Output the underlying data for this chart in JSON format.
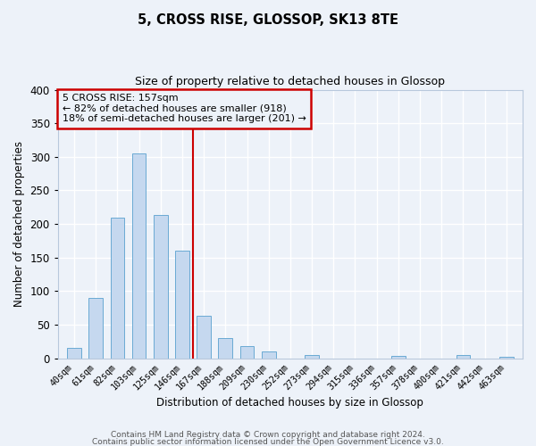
{
  "title": "5, CROSS RISE, GLOSSOP, SK13 8TE",
  "subtitle": "Size of property relative to detached houses in Glossop",
  "xlabel": "Distribution of detached houses by size in Glossop",
  "ylabel": "Number of detached properties",
  "bin_labels": [
    "40sqm",
    "61sqm",
    "82sqm",
    "103sqm",
    "125sqm",
    "146sqm",
    "167sqm",
    "188sqm",
    "209sqm",
    "230sqm",
    "252sqm",
    "273sqm",
    "294sqm",
    "315sqm",
    "336sqm",
    "357sqm",
    "378sqm",
    "400sqm",
    "421sqm",
    "442sqm",
    "463sqm"
  ],
  "bar_values": [
    15,
    90,
    210,
    305,
    213,
    160,
    63,
    30,
    18,
    10,
    0,
    5,
    0,
    0,
    0,
    3,
    0,
    0,
    5,
    0,
    2
  ],
  "bar_color": "#c5d8ef",
  "bar_edgecolor": "#6aaad4",
  "vline_color": "#cc0000",
  "annotation_text": "5 CROSS RISE: 157sqm\n← 82% of detached houses are smaller (918)\n18% of semi-detached houses are larger (201) →",
  "annotation_box_edgecolor": "#cc0000",
  "ylim": [
    0,
    400
  ],
  "yticks": [
    0,
    50,
    100,
    150,
    200,
    250,
    300,
    350,
    400
  ],
  "footer_line1": "Contains HM Land Registry data © Crown copyright and database right 2024.",
  "footer_line2": "Contains public sector information licensed under the Open Government Licence v3.0.",
  "background_color": "#edf2f9",
  "grid_color": "#ffffff",
  "vline_bin_index": 6
}
